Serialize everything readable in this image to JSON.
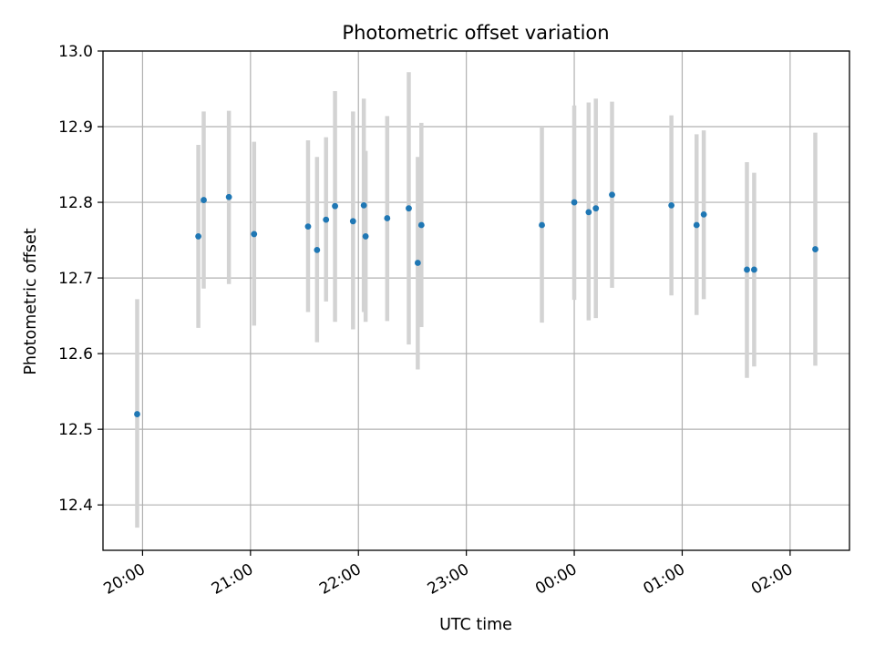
{
  "chart_data": {
    "type": "scatter",
    "title": "Photometric offset variation",
    "xlabel": "UTC time",
    "ylabel": "Photometric offset",
    "x_axis": {
      "kind": "time",
      "ticks": [
        "20:00",
        "21:00",
        "22:00",
        "23:00",
        "00:00",
        "01:00",
        "02:00"
      ],
      "range": [
        "19:38",
        "02:33"
      ]
    },
    "y_axis": {
      "range": [
        12.34,
        13.0
      ],
      "ticks": [
        "12.4",
        "12.5",
        "12.6",
        "12.7",
        "12.8",
        "12.9",
        "13.0"
      ]
    },
    "grid": true,
    "colors": {
      "points": "#1f77b4",
      "error_bars": "#d3d3d3",
      "grid": "#b0b0b0"
    },
    "series": [
      {
        "points": [
          {
            "x": "19:57",
            "y": 12.52,
            "low": 12.37,
            "high": 12.672
          },
          {
            "x": "20:31",
            "y": 12.755,
            "low": 12.634,
            "high": 12.876
          },
          {
            "x": "20:34",
            "y": 12.803,
            "low": 12.686,
            "high": 12.92
          },
          {
            "x": "20:48",
            "y": 12.807,
            "low": 12.692,
            "high": 12.921
          },
          {
            "x": "21:02",
            "y": 12.758,
            "low": 12.637,
            "high": 12.88
          },
          {
            "x": "21:32",
            "y": 12.768,
            "low": 12.655,
            "high": 12.882
          },
          {
            "x": "21:37",
            "y": 12.737,
            "low": 12.615,
            "high": 12.86
          },
          {
            "x": "21:42",
            "y": 12.777,
            "low": 12.669,
            "high": 12.886
          },
          {
            "x": "21:47",
            "y": 12.795,
            "low": 12.642,
            "high": 12.947
          },
          {
            "x": "21:57",
            "y": 12.775,
            "low": 12.632,
            "high": 12.92
          },
          {
            "x": "22:03",
            "y": 12.796,
            "low": 12.655,
            "high": 12.937
          },
          {
            "x": "22:04",
            "y": 12.755,
            "low": 12.642,
            "high": 12.868
          },
          {
            "x": "22:16",
            "y": 12.779,
            "low": 12.643,
            "high": 12.914
          },
          {
            "x": "22:28",
            "y": 12.792,
            "low": 12.612,
            "high": 12.972
          },
          {
            "x": "22:33",
            "y": 12.72,
            "low": 12.579,
            "high": 12.86
          },
          {
            "x": "22:35",
            "y": 12.77,
            "low": 12.635,
            "high": 12.905
          },
          {
            "x": "23:42",
            "y": 12.77,
            "low": 12.641,
            "high": 12.9
          },
          {
            "x": "00:00",
            "y": 12.8,
            "low": 12.671,
            "high": 12.928
          },
          {
            "x": "00:08",
            "y": 12.787,
            "low": 12.644,
            "high": 12.932
          },
          {
            "x": "00:12",
            "y": 12.792,
            "low": 12.647,
            "high": 12.937
          },
          {
            "x": "00:21",
            "y": 12.81,
            "low": 12.687,
            "high": 12.933
          },
          {
            "x": "00:54",
            "y": 12.796,
            "low": 12.677,
            "high": 12.915
          },
          {
            "x": "01:08",
            "y": 12.77,
            "low": 12.651,
            "high": 12.89
          },
          {
            "x": "01:12",
            "y": 12.784,
            "low": 12.672,
            "high": 12.895
          },
          {
            "x": "01:36",
            "y": 12.711,
            "low": 12.568,
            "high": 12.853
          },
          {
            "x": "01:40",
            "y": 12.711,
            "low": 12.583,
            "high": 12.839
          },
          {
            "x": "02:14",
            "y": 12.738,
            "low": 12.584,
            "high": 12.892
          }
        ]
      }
    ]
  }
}
